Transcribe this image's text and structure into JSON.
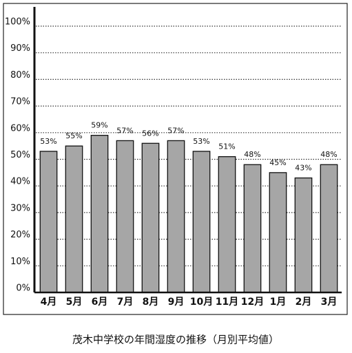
{
  "chart_data": {
    "type": "bar",
    "title": "茂木中学校の年間湿度の推移（月別平均値）",
    "categories": [
      "4月",
      "5月",
      "6月",
      "7月",
      "8月",
      "9月",
      "10月",
      "11月",
      "12月",
      "1月",
      "2月",
      "3月"
    ],
    "values": [
      53,
      55,
      59,
      57,
      56,
      57,
      53,
      51,
      48,
      45,
      43,
      48
    ],
    "value_labels": [
      "53%",
      "55%",
      "59%",
      "57%",
      "56%",
      "57%",
      "53%",
      "51%",
      "48%",
      "45%",
      "43%",
      "48%"
    ],
    "color": "#a6a6a6",
    "ylim": [
      0,
      100
    ],
    "yticks": [
      {
        "value": 0,
        "label": "0%"
      },
      {
        "value": 10,
        "label": "10%"
      },
      {
        "value": 20,
        "label": "20%"
      },
      {
        "value": 30,
        "label": "30%"
      },
      {
        "value": 40,
        "label": "40%"
      },
      {
        "value": 50,
        "label": "50%"
      },
      {
        "value": 60,
        "label": "60%"
      },
      {
        "value": 70,
        "label": "70%"
      },
      {
        "value": 80,
        "label": "80%"
      },
      {
        "value": 90,
        "label": "90%"
      },
      {
        "value": 100,
        "label": "100%"
      }
    ],
    "grid": true
  }
}
